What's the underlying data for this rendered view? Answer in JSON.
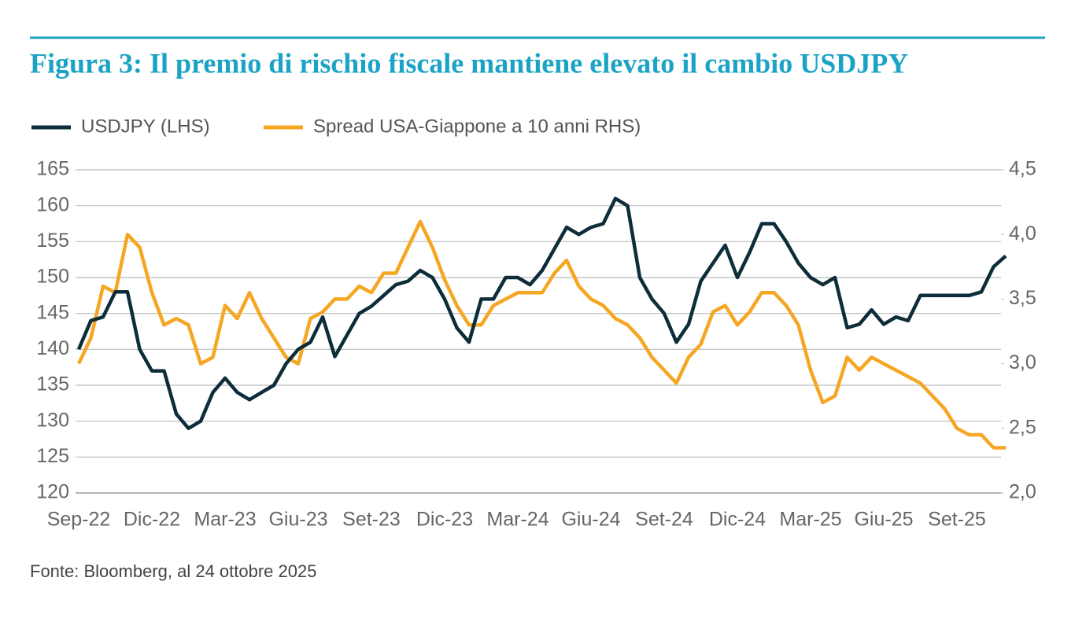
{
  "chart_data": {
    "type": "line",
    "title": "Figura 3: Il premio di rischio fiscale mantiene elevato il cambio USDJPY",
    "source": "Fonte: Bloomberg, al 24 ottobre 2025",
    "categories": [
      "Sep-22",
      null,
      null,
      null,
      null,
      null,
      "Dic-22",
      null,
      null,
      null,
      null,
      null,
      "Mar-23",
      null,
      null,
      null,
      null,
      null,
      "Giu-23",
      null,
      null,
      null,
      null,
      null,
      "Set-23",
      null,
      null,
      null,
      null,
      null,
      "Dic-23",
      null,
      null,
      null,
      null,
      null,
      "Mar-24",
      null,
      null,
      null,
      null,
      null,
      "Giu-24",
      null,
      null,
      null,
      null,
      null,
      "Set-24",
      null,
      null,
      null,
      null,
      null,
      "Dic-24",
      null,
      null,
      null,
      null,
      null,
      "Mar-25",
      null,
      null,
      null,
      null,
      null,
      "Giu-25",
      null,
      null,
      null,
      null,
      null,
      "Set-25",
      null,
      null,
      null,
      null
    ],
    "series": [
      {
        "name": "USDJPY (LHS)",
        "color": "#0d2d3a",
        "axis": "y",
        "values": [
          140,
          144,
          144.5,
          148,
          148,
          140,
          137,
          137,
          131,
          129,
          130,
          134,
          136,
          134,
          133,
          134,
          135,
          138,
          140,
          141,
          144.5,
          139,
          142,
          145,
          146,
          147.5,
          149,
          149.5,
          151,
          150,
          147,
          143,
          141,
          147,
          147,
          150,
          150,
          149,
          151,
          154,
          157,
          156,
          157,
          157.5,
          161,
          160,
          150,
          147,
          145,
          141,
          143.5,
          149.5,
          152,
          154.5,
          150,
          153.5,
          157.5,
          157.5,
          155,
          152,
          150,
          149,
          150,
          143,
          143.5,
          145.5,
          143.5,
          144.5,
          144,
          147.5,
          147.5,
          147.5,
          147.5,
          147.5,
          148,
          151.5,
          153
        ]
      },
      {
        "name": "Spread USA-Giappone a 10 anni RHS)",
        "color": "#f5a623",
        "axis": "y2",
        "values": [
          3.0,
          3.2,
          3.6,
          3.55,
          4.0,
          3.9,
          3.55,
          3.3,
          3.35,
          3.3,
          3.0,
          3.05,
          3.45,
          3.35,
          3.55,
          3.35,
          3.2,
          3.05,
          3.0,
          3.35,
          3.4,
          3.5,
          3.5,
          3.6,
          3.55,
          3.7,
          3.7,
          3.9,
          4.1,
          3.9,
          3.65,
          3.45,
          3.3,
          3.3,
          3.45,
          3.5,
          3.55,
          3.55,
          3.55,
          3.7,
          3.8,
          3.6,
          3.5,
          3.45,
          3.35,
          3.3,
          3.2,
          3.05,
          2.95,
          2.85,
          3.05,
          3.15,
          3.4,
          3.45,
          3.3,
          3.4,
          3.55,
          3.55,
          3.45,
          3.3,
          2.95,
          2.7,
          2.75,
          3.05,
          2.95,
          3.05,
          3.0,
          2.95,
          2.9,
          2.85,
          2.75,
          2.65,
          2.5,
          2.45,
          2.45,
          2.35,
          2.35
        ]
      }
    ],
    "ylim": [
      120,
      165
    ],
    "yticks": [
      120,
      125,
      130,
      135,
      140,
      145,
      150,
      155,
      160,
      165
    ],
    "y2lim": [
      2.0,
      4.5
    ],
    "y2ticks": [
      {
        "value": 2.0,
        "label": "2,0"
      },
      {
        "value": 2.5,
        "label": "2,5"
      },
      {
        "value": 3.0,
        "label": "3,0"
      },
      {
        "value": 3.5,
        "label": "3,5"
      },
      {
        "value": 4.0,
        "label": "4,0"
      },
      {
        "value": 4.5,
        "label": "4,5"
      }
    ],
    "grid": true,
    "legend": "top"
  }
}
